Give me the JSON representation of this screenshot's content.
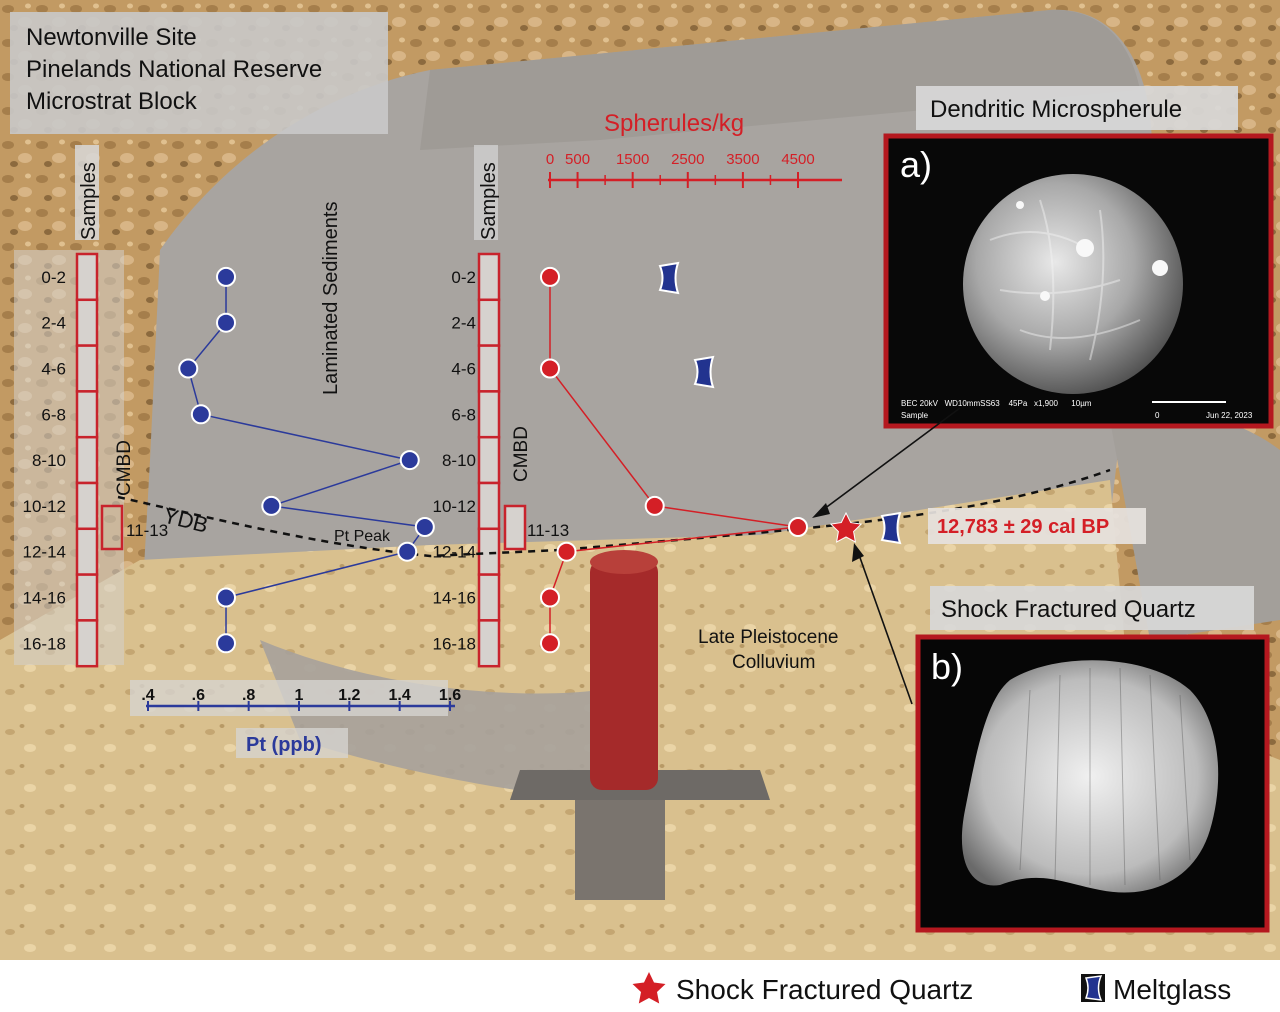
{
  "site_box": {
    "line1": "Newtonville Site",
    "line2": "Pinelands National Reserve",
    "line3": "Microstrat Block"
  },
  "sample_labels": [
    "0-2",
    "2-4",
    "4-6",
    "6-8",
    "8-10",
    "10-12",
    "12-14",
    "14-16",
    "16-18"
  ],
  "labels": {
    "samples": "Samples",
    "cmbd": "CMBD",
    "cmbd_sample": "11-13",
    "laminated": "Laminated Sediments",
    "ydb": "YDB",
    "pt_peak": "Pt Peak",
    "late_pleistocene_1": "Late Pleistocene",
    "late_pleistocene_2": "Colluvium",
    "date": "12,783 ± 29 cal BP"
  },
  "panel_a": {
    "title": "Dendritic Microspherule",
    "letter": "a)",
    "sem_line1": "BEC 20kV   WD10mmSS63    45Pa   x1,900      10µm",
    "sem_line2": "Sample",
    "sem_scale_zero": "0",
    "sem_date": "Jun 22, 2023"
  },
  "panel_b": {
    "title": "Shock Fractured Quartz",
    "letter": "b)"
  },
  "legend": {
    "quartz": "Shock Fractured Quartz",
    "meltglass": "Meltglass"
  },
  "colors": {
    "pt": "#2b3a9b",
    "spherules": "#d41f26",
    "sample_box": "#c8232c",
    "meltglass": "#22338f"
  },
  "chart_data": [
    {
      "type": "line",
      "title": "",
      "xlabel": "Pt (ppb)",
      "ylabel": "Samples",
      "x_ticks": [
        ".4",
        ".6",
        ".8",
        "1",
        "1.2",
        "1.4",
        "1.6"
      ],
      "xlim": [
        0.4,
        1.6
      ],
      "categories": [
        "0-2",
        "2-4",
        "4-6",
        "6-8",
        "8-10",
        "10-12",
        "11-13",
        "12-14",
        "14-16",
        "16-18"
      ],
      "series": [
        {
          "values": [
            0.71,
            0.71,
            0.56,
            0.61,
            1.44,
            0.89,
            1.5,
            1.43,
            0.71,
            0.71
          ]
        }
      ]
    },
    {
      "type": "line",
      "title": "",
      "xlabel": "Spherules/kg",
      "ylabel": "Samples",
      "x_ticks": [
        "0",
        "500",
        "1500",
        "2500",
        "3500",
        "4500"
      ],
      "xlim": [
        0,
        5000
      ],
      "categories": [
        "0-2",
        "4-6",
        "10-12",
        "11-13",
        "12-14",
        "14-16",
        "16-18"
      ],
      "series": [
        {
          "values": [
            0,
            0,
            1900,
            4500,
            300,
            0,
            0
          ]
        }
      ]
    }
  ]
}
